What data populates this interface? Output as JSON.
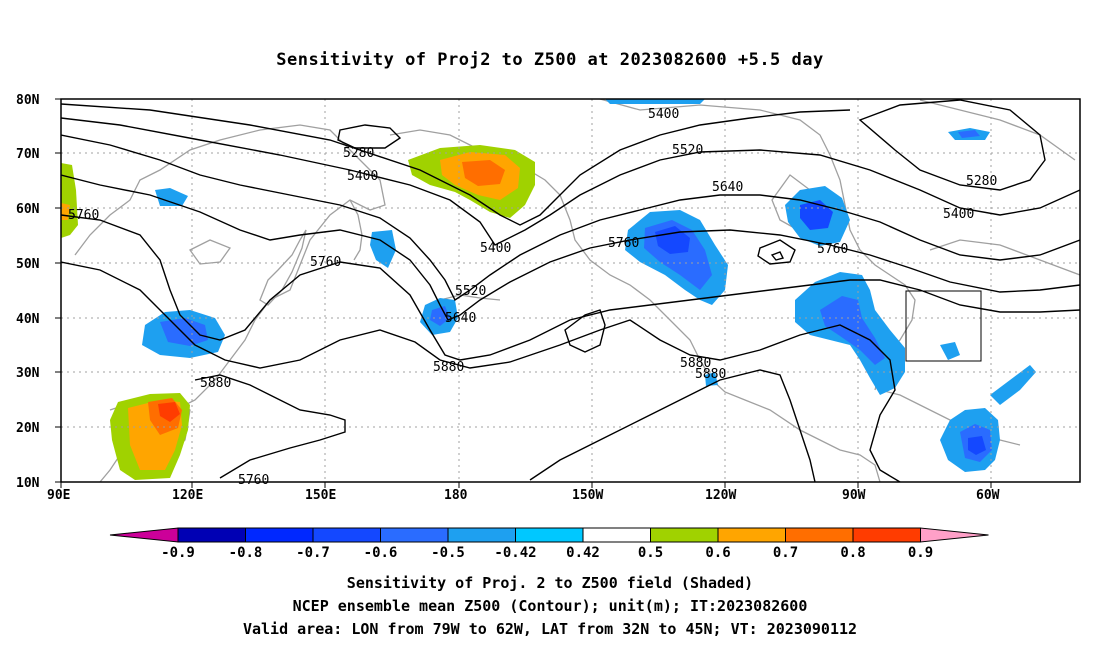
{
  "title": "Sensitivity of Proj2 to Z500 at 2023082600 +5.5 day",
  "map": {
    "lat_labels": [
      "80N",
      "70N",
      "60N",
      "50N",
      "40N",
      "30N",
      "20N",
      "10N"
    ],
    "lon_labels": [
      "90E",
      "120E",
      "150E",
      "180",
      "150W",
      "120W",
      "90W",
      "60W"
    ],
    "contour_labels": [
      "5400",
      "5520",
      "5640",
      "5760",
      "5880",
      "5280",
      "5400",
      "5280",
      "5400",
      "5760",
      "5760",
      "5400",
      "5520",
      "5640",
      "5760",
      "5880",
      "5880",
      "5880",
      "5760"
    ],
    "valid_box": {
      "lon_from": "79W",
      "lon_to": "62W",
      "lat_from": "32N",
      "lat_to": "45N"
    }
  },
  "colorbar": {
    "labels": [
      "-0.9",
      "-0.8",
      "-0.7",
      "-0.6",
      "-0.5",
      "-0.42",
      "0.42",
      "0.5",
      "0.6",
      "0.7",
      "0.8",
      "0.9"
    ],
    "colors": [
      "#0000b4",
      "#0028ff",
      "#1448ff",
      "#2a6cff",
      "#1ea0f0",
      "#00c8ff",
      "#ffffff",
      "#a0d200",
      "#ffa500",
      "#ff6e00",
      "#ff3c00",
      "#ff0000"
    ],
    "low_end_color": "#cc0099",
    "high_end_color": "#ffa0c8"
  },
  "captions": {
    "line1": "Sensitivity of Proj. 2 to Z500 field (Shaded)",
    "line2": "NCEP ensemble mean Z500 (Contour); unit(m); IT:2023082600",
    "line3": "Valid area: LON from 79W to 62W, LAT from 32N to 45N; VT: 2023090112"
  }
}
